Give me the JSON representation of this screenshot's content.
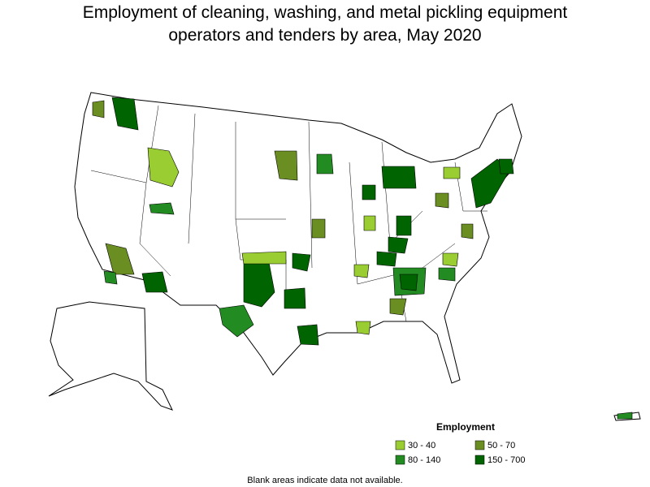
{
  "title_lines": [
    "Employment of cleaning, washing, and metal pickling equipment",
    "operators and tenders by area, May 2020"
  ],
  "legend": {
    "title": "Employment",
    "items": [
      {
        "label": "30 - 40",
        "color": "#9acd32"
      },
      {
        "label": "50 - 70",
        "color": "#6b8e23"
      },
      {
        "label": "80 - 140",
        "color": "#228b22"
      },
      {
        "label": "150 - 700",
        "color": "#006400"
      }
    ]
  },
  "note": "Blank areas indicate data not available."
}
